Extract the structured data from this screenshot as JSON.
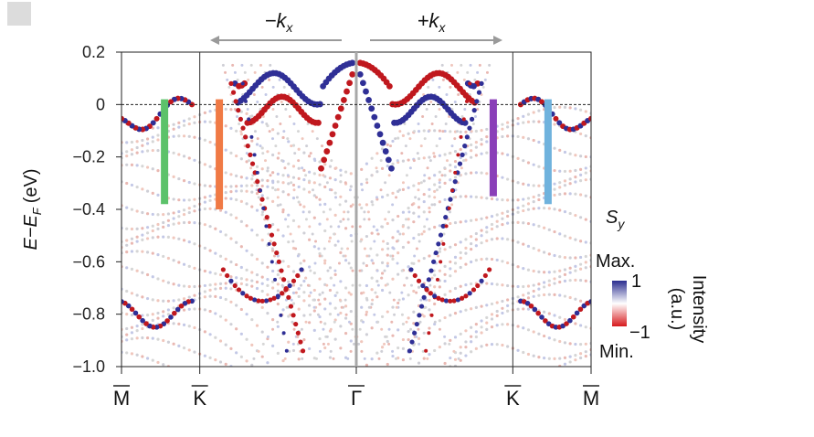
{
  "chart_data": {
    "type": "scatter",
    "title": "",
    "ylabel": "E−E_F (eV)",
    "ylabel_main": "E−E",
    "ylabel_sub": "F",
    "ylabel_unit": "(eV)",
    "ylim": [
      -1.0,
      0.2
    ],
    "yticks": [
      0.2,
      0,
      -0.2,
      -0.4,
      -0.6,
      -0.8,
      -1.0
    ],
    "ytick_labels": [
      "0.2",
      "0",
      "−0.2",
      "−0.4",
      "−0.6",
      "−0.8",
      "−1.0"
    ],
    "xlim": [
      -3,
      3
    ],
    "high_symmetry_points": [
      {
        "label": "M",
        "x": -3
      },
      {
        "label": "K",
        "x": -2
      },
      {
        "label": "Γ",
        "x": 0
      },
      {
        "label": "K",
        "x": 2
      },
      {
        "label": "M",
        "x": 3
      }
    ],
    "fermi_level": 0,
    "direction_arrows": [
      {
        "label": "−k",
        "sub": "x",
        "direction": "left"
      },
      {
        "label": "+k",
        "sub": "x",
        "direction": "right"
      }
    ],
    "highlight_bars": [
      {
        "x": -2.45,
        "y_top": 0.02,
        "y_bottom": -0.38,
        "color": "#5cc26a"
      },
      {
        "x": -1.75,
        "y_top": 0.02,
        "y_bottom": -0.4,
        "color": "#f07a45"
      },
      {
        "x": 1.75,
        "y_top": 0.02,
        "y_bottom": -0.35,
        "color": "#8a3fb8"
      },
      {
        "x": 2.45,
        "y_top": 0.02,
        "y_bottom": -0.38,
        "color": "#6fb2dd"
      }
    ],
    "colorbar": {
      "label": "S",
      "label_sub": "y",
      "max_text": "Max.",
      "min_text": "Min.",
      "max_value": "1",
      "min_value": "−1",
      "intensity_label": "Intensity",
      "intensity_unit": "(a.u.)",
      "colors": {
        "max": "#2a2d8f",
        "mid": "#ffffff",
        "min": "#d7191c"
      }
    },
    "colors": {
      "sy_positive": "#2f2f96",
      "sy_negative": "#c0181e",
      "background_bands": "#c8c8d0"
    }
  }
}
